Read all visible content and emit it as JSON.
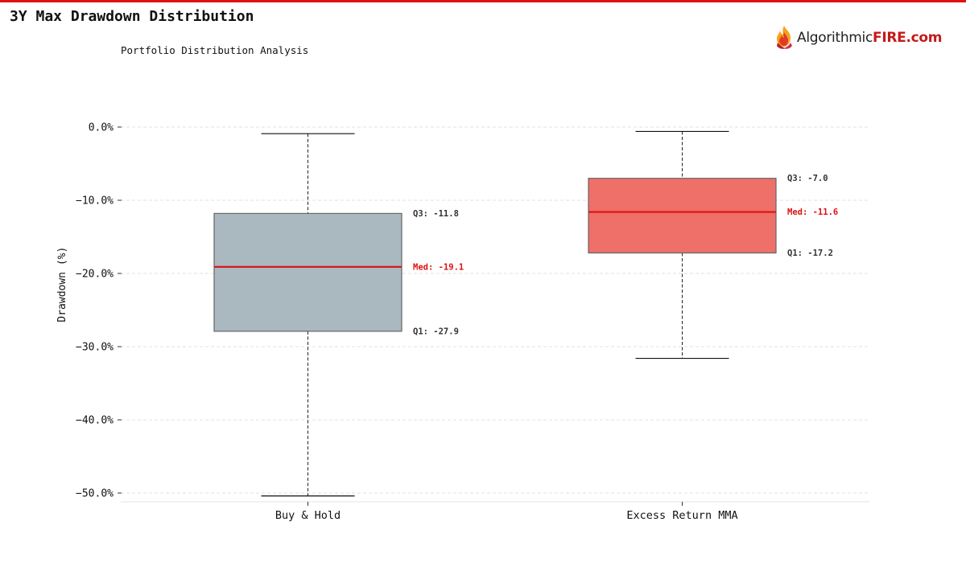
{
  "header": {
    "title": "3Y Max Drawdown Distribution",
    "subtitle": "Portfolio Distribution Analysis",
    "accent_color": "#dd1111"
  },
  "logo": {
    "text_main": "Algorithmic",
    "text_brand": "FIRE.com",
    "icon": "flame-icon",
    "brand_color": "#c41a1a"
  },
  "chart_data": {
    "type": "box",
    "title": "3Y Max Drawdown Distribution",
    "subtitle": "Portfolio Distribution Analysis",
    "ylabel": "Drawdown (%)",
    "xlabel": "",
    "ylim": [
      -51.2,
      4.5
    ],
    "yticks": [
      0,
      -10,
      -20,
      -30,
      -40,
      -50
    ],
    "ytick_labels": [
      "0.0%",
      "−10.0%",
      "−20.0%",
      "−30.0%",
      "−40.0%",
      "−50.0%"
    ],
    "grid": true,
    "series": [
      {
        "name": "Buy & Hold",
        "whisker_high": -0.9,
        "q3": -11.8,
        "median": -19.1,
        "q1": -27.9,
        "whisker_low": -50.4,
        "color": "#aab8c0",
        "q3_label": "Q3: -11.8",
        "median_label": "Med: -19.1",
        "q1_label": "Q1: -27.9"
      },
      {
        "name": "Excess Return MMA",
        "whisker_high": -0.6,
        "q3": -7.0,
        "median": -11.6,
        "q1": -17.2,
        "whisker_low": -31.6,
        "color": "#ee7068",
        "q3_label": "Q3: -7.0",
        "median_label": "Med: -11.6",
        "q1_label": "Q1: -17.2"
      }
    ],
    "median_color": "#dd1111"
  }
}
